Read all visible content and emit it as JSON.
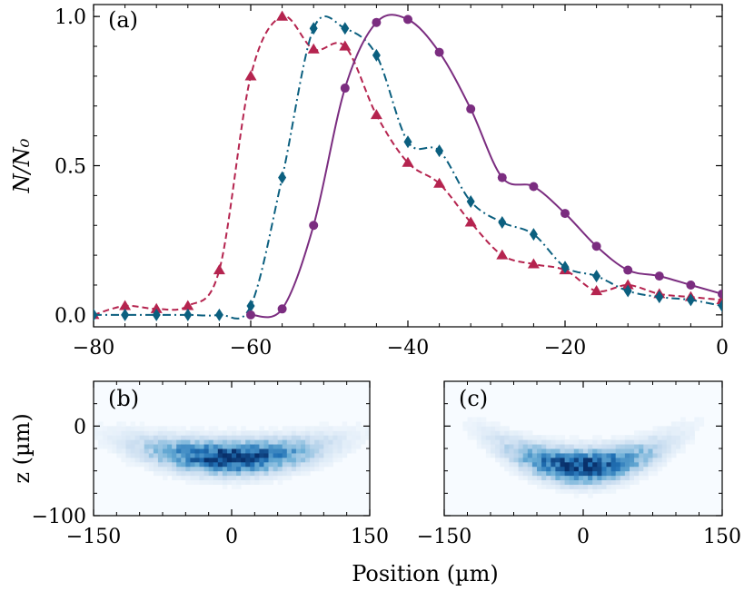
{
  "chart_data": [
    {
      "type": "line",
      "panel_label": "(a)",
      "xlim": [
        -80,
        0
      ],
      "ylim": [
        -0.04,
        1.04
      ],
      "xticks": [
        -80,
        -60,
        -40,
        -20,
        0
      ],
      "yticks": [
        0.0,
        0.5,
        1.0
      ],
      "xtick_labels": [
        "−80",
        "−60",
        "−40",
        "−20",
        "0"
      ],
      "ytick_labels": [
        "0.0",
        "0.5",
        "1.0"
      ],
      "ylabel": "N/N₀",
      "xlabel": "",
      "grid": false,
      "legend": "none",
      "series": [
        {
          "color": "#b5244f",
          "marker": "triangle",
          "line_style": "dashed",
          "x": [
            -80,
            -76,
            -72,
            -68,
            -64,
            -60,
            -56,
            -52,
            -48,
            -44,
            -40,
            -36,
            -32,
            -28,
            -24,
            -20,
            -16,
            -12,
            -8,
            -4,
            0
          ],
          "y": [
            0.0,
            0.03,
            0.02,
            0.03,
            0.15,
            0.8,
            1.0,
            0.89,
            0.9,
            0.67,
            0.51,
            0.44,
            0.31,
            0.2,
            0.17,
            0.15,
            0.08,
            0.1,
            0.07,
            0.06,
            0.05
          ]
        },
        {
          "color": "#0b5f7f",
          "marker": "diamond",
          "line_style": "dashdot",
          "x": [
            -80,
            -76,
            -72,
            -68,
            -64,
            -60,
            -56,
            -52,
            -48,
            -44,
            -40,
            -36,
            -32,
            -28,
            -24,
            -20,
            -16,
            -12,
            -8,
            -4,
            0
          ],
          "y": [
            0.0,
            0.0,
            0.0,
            0.0,
            0.0,
            0.03,
            0.46,
            0.96,
            0.96,
            0.87,
            0.58,
            0.55,
            0.38,
            0.31,
            0.27,
            0.16,
            0.13,
            0.08,
            0.06,
            0.05,
            0.03
          ]
        },
        {
          "color": "#7b2d80",
          "marker": "circle",
          "line_style": "solid",
          "x": [
            -60,
            -56,
            -52,
            -48,
            -44,
            -40,
            -36,
            -32,
            -28,
            -24,
            -20,
            -16,
            -12,
            -8,
            -4,
            0
          ],
          "y": [
            0.0,
            0.02,
            0.3,
            0.76,
            0.98,
            0.99,
            0.88,
            0.69,
            0.46,
            0.43,
            0.34,
            0.23,
            0.15,
            0.13,
            0.1,
            0.07
          ]
        }
      ]
    },
    {
      "type": "heatmap",
      "panel_label": "(b)",
      "xlim": [
        -150,
        150
      ],
      "ylim": [
        -100,
        50
      ],
      "xticks": [
        -150,
        0,
        150
      ],
      "yticks": [
        -100,
        0
      ],
      "xtick_labels": [
        "−150",
        "0",
        "150"
      ],
      "ytick_labels": [
        "−100",
        "0"
      ],
      "ylabel": "z (µm)",
      "colormap": "Blues",
      "cloud": {
        "center_x": 0,
        "center_z": -35,
        "width": 95,
        "height": 30,
        "curvature": 0.0012
      }
    },
    {
      "type": "heatmap",
      "panel_label": "(c)",
      "xlim": [
        -150,
        150
      ],
      "ylim": [
        -100,
        50
      ],
      "xticks": [
        -150,
        0,
        150
      ],
      "xtick_labels": [
        "−150",
        "0",
        "150"
      ],
      "colormap": "Blues",
      "cloud": {
        "center_x": 0,
        "center_z": -45,
        "width": 80,
        "height": 30,
        "curvature": 0.003
      }
    }
  ],
  "shared_xlabel": "Position (µm)"
}
